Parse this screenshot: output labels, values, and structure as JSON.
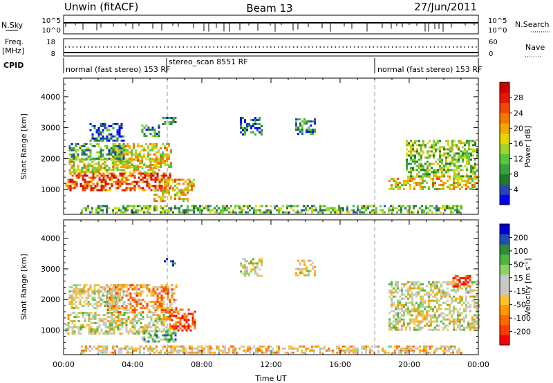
{
  "header": {
    "station": "Unwin (fitACF)",
    "beam": "Beam 13",
    "date": "27/Jun/2011"
  },
  "summary": {
    "nsky_label": "N.Sky",
    "nsearch_label": "N.Search",
    "nsky_ticks": [
      "10^5",
      "10^0"
    ],
    "nsearch_ticks": [
      "10^5",
      "10^0"
    ],
    "freq_label": "Freq.",
    "freq_unit": "[MHz]",
    "freq_ticks": [
      "18",
      "8"
    ],
    "nave_label": "Nave",
    "nave_ticks": [
      "60",
      "0"
    ],
    "cpid_label": "CPID",
    "cpid_segments": [
      {
        "label": "normal (fast stereo) 153 RF",
        "start_hour": 0,
        "end_hour": 6
      },
      {
        "label": "stereo_scan 8551 RF",
        "start_hour": 6,
        "end_hour": 18
      },
      {
        "label": "normal (fast stereo) 153 RF",
        "start_hour": 18,
        "end_hour": 24
      }
    ]
  },
  "chart_data": [
    {
      "type": "heatmap",
      "ylabel": "Slant Range [km]",
      "xlabel": "Time UT",
      "xlim": [
        0,
        24
      ],
      "ylim": [
        200,
        4600
      ],
      "yticks": [
        1000,
        2000,
        3000,
        4000
      ],
      "xticks": [
        {
          "hour": 0,
          "label": "00:00"
        },
        {
          "hour": 4,
          "label": "04:00"
        },
        {
          "hour": 8,
          "label": "08:00"
        },
        {
          "hour": 12,
          "label": "12:00"
        },
        {
          "hour": 16,
          "label": "16:00"
        },
        {
          "hour": 20,
          "label": "20:00"
        },
        {
          "hour": 24,
          "label": "00:00"
        }
      ],
      "vlines_hours": [
        6,
        18
      ],
      "colorbar": {
        "label": "Power [dB]",
        "ticks": [
          "4",
          "8",
          "12",
          "16",
          "20",
          "24",
          "28"
        ],
        "colors": [
          "#0000ff",
          "#2546b4",
          "#1f7a2b",
          "#3aa23a",
          "#57c83c",
          "#a2d42a",
          "#e5d800",
          "#f4a800",
          "#f47800",
          "#f04a00",
          "#e81800",
          "#d00000"
        ]
      },
      "regions": [
        {
          "t": [
            0.1,
            6.2
          ],
          "r": [
            1000,
            1550
          ],
          "level": 0.78
        },
        {
          "t": [
            0.3,
            5.5
          ],
          "r": [
            1550,
            2000
          ],
          "level": 0.5
        },
        {
          "t": [
            2.8,
            6.2
          ],
          "r": [
            1700,
            2500
          ],
          "level": 0.55
        },
        {
          "t": [
            0.3,
            3.5
          ],
          "r": [
            2000,
            2500
          ],
          "level": 0.3
        },
        {
          "t": [
            1.5,
            3.5
          ],
          "r": [
            2600,
            3150
          ],
          "level": 0.15
        },
        {
          "t": [
            4.5,
            5.5
          ],
          "r": [
            2700,
            3100
          ],
          "level": 0.25
        },
        {
          "t": [
            5.8,
            7.6
          ],
          "r": [
            1000,
            1350
          ],
          "level": 0.6
        },
        {
          "t": [
            5.2,
            7.2
          ],
          "r": [
            600,
            1000
          ],
          "level": 0.55
        },
        {
          "t": [
            5.7,
            6.5
          ],
          "r": [
            3100,
            3350
          ],
          "level": 0.2
        },
        {
          "t": [
            10.2,
            11.5
          ],
          "r": [
            2800,
            3350
          ],
          "level": 0.15
        },
        {
          "t": [
            13.4,
            14.5
          ],
          "r": [
            2800,
            3300
          ],
          "level": 0.2
        },
        {
          "t": [
            18.8,
            24.0
          ],
          "r": [
            1000,
            1450
          ],
          "level": 0.55
        },
        {
          "t": [
            19.8,
            24.0
          ],
          "r": [
            1450,
            2600
          ],
          "level": 0.4
        },
        {
          "t": [
            1.0,
            23.0
          ],
          "r": [
            250,
            500
          ],
          "level": 0.35
        }
      ]
    },
    {
      "type": "heatmap",
      "ylabel": "Slant Range [km]",
      "xlabel": "Time UT",
      "xlim": [
        0,
        24
      ],
      "ylim": [
        200,
        4600
      ],
      "yticks": [
        1000,
        2000,
        3000,
        4000
      ],
      "xticks": [
        {
          "hour": 0,
          "label": "00:00"
        },
        {
          "hour": 4,
          "label": "04:00"
        },
        {
          "hour": 8,
          "label": "08:00"
        },
        {
          "hour": 12,
          "label": "12:00"
        },
        {
          "hour": 16,
          "label": "16:00"
        },
        {
          "hour": 20,
          "label": "20:00"
        },
        {
          "hour": 24,
          "label": "00:00"
        }
      ],
      "vlines_hours": [
        6,
        18
      ],
      "colorbar": {
        "label": "Velocity [m s^-1]",
        "ticks": [
          "-200",
          "-100",
          "-50",
          "-15",
          "15",
          "50",
          "100",
          "200"
        ],
        "colors": [
          "#ff0000",
          "#ff3c00",
          "#ff6a00",
          "#ff9a00",
          "#ffc030",
          "#c8c8c8",
          "#c8c8c8",
          "#8cd264",
          "#50b440",
          "#2d8c3c",
          "#1e50b4",
          "#0000d2"
        ]
      },
      "regions": [
        {
          "t": [
            0.1,
            6.2
          ],
          "r": [
            900,
            1600
          ],
          "level": 0.5
        },
        {
          "t": [
            2.5,
            6.5
          ],
          "r": [
            1600,
            2500
          ],
          "level": 0.3
        },
        {
          "t": [
            0.3,
            3.5
          ],
          "r": [
            1700,
            2500
          ],
          "level": 0.5
        },
        {
          "t": [
            6.1,
            7.6
          ],
          "r": [
            1000,
            1700
          ],
          "level": 0.12
        },
        {
          "t": [
            5.8,
            6.5
          ],
          "r": [
            3100,
            3350
          ],
          "level": 0.95
        },
        {
          "t": [
            4.5,
            6.5
          ],
          "r": [
            600,
            1000
          ],
          "level": 0.65
        },
        {
          "t": [
            10.2,
            11.5
          ],
          "r": [
            2800,
            3350
          ],
          "level": 0.5
        },
        {
          "t": [
            13.4,
            14.5
          ],
          "r": [
            2800,
            3300
          ],
          "level": 0.5
        },
        {
          "t": [
            18.8,
            24.0
          ],
          "r": [
            1000,
            2600
          ],
          "level": 0.5
        },
        {
          "t": [
            22.5,
            23.5
          ],
          "r": [
            2400,
            2800
          ],
          "level": 0.05
        },
        {
          "t": [
            1.0,
            23.0
          ],
          "r": [
            250,
            500
          ],
          "level": 0.4
        }
      ]
    }
  ]
}
